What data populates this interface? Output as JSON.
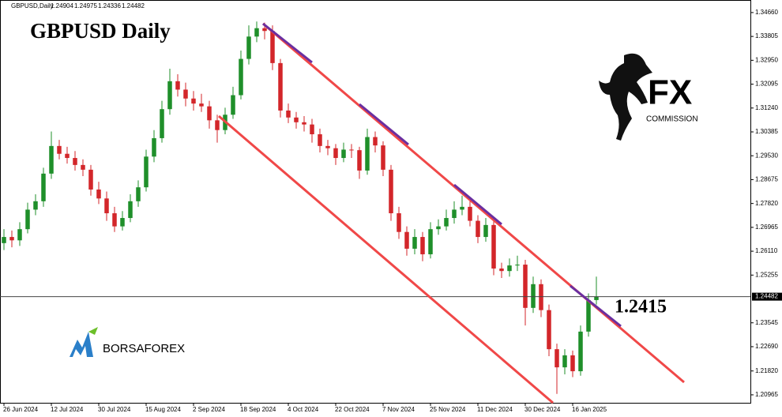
{
  "header": {
    "symbol": "GBPUSD,Daily",
    "quotes": [
      "1.24904",
      "1.24975",
      "1.24336",
      "1.24482"
    ]
  },
  "chart_data": {
    "type": "candlestick",
    "title": "GBPUSD   Daily",
    "annotation": "1.2415",
    "up_color": "#1f8f2a",
    "down_color": "#d3262a",
    "ylim": [
      1.2068,
      1.3511
    ],
    "yticks": [
      {
        "value": 1.3466,
        "label": "1.34660"
      },
      1.33805,
      {
        "value": 1.3295,
        "label": "1.32950"
      },
      1.32095,
      {
        "value": 1.3124,
        "label": "1.31240"
      },
      1.30385,
      {
        "value": 1.2953,
        "label": "1.29530"
      },
      1.28675,
      {
        "value": 1.2782,
        "label": "1.27820"
      },
      1.26965,
      {
        "value": 1.2611,
        "label": "1.26110"
      },
      1.25255,
      1.23545,
      {
        "value": 1.2269,
        "label": "1.22690"
      },
      {
        "value": 1.2182,
        "label": "1.21820"
      },
      1.20965
    ],
    "current_price": 1.24482,
    "xlim": [
      -0.5,
      94.5
    ],
    "xticks": [
      {
        "value": 0,
        "label": "26 Jun 2024"
      },
      {
        "value": 6,
        "label": "12 Jul 2024"
      },
      {
        "value": 12,
        "label": "30 Jul 2024"
      },
      {
        "value": 18,
        "label": "15 Aug 2024"
      },
      {
        "value": 24,
        "label": "2 Sep 2024"
      },
      {
        "value": 30,
        "label": "18 Sep 2024"
      },
      {
        "value": 36,
        "label": "4 Oct 2024"
      },
      {
        "value": 42,
        "label": "22 Oct 2024"
      },
      {
        "value": 48,
        "label": "7 Nov 2024"
      },
      {
        "value": 54,
        "label": "25 Nov 2024"
      },
      {
        "value": 60,
        "label": "11 Dec 2024"
      },
      {
        "value": 66,
        "label": "30 Dec 2024"
      },
      {
        "value": 72,
        "label": "16 Jan 2025"
      }
    ],
    "candles": [
      [
        1.264,
        1.269,
        1.2615,
        1.2662
      ],
      [
        1.2662,
        1.2685,
        1.2625,
        1.265
      ],
      [
        1.265,
        1.2715,
        1.263,
        1.269
      ],
      [
        1.269,
        1.2785,
        1.2675,
        1.276
      ],
      [
        1.276,
        1.2815,
        1.274,
        1.279
      ],
      [
        1.279,
        1.291,
        1.277,
        1.2889
      ],
      [
        1.2889,
        1.304,
        1.287,
        1.2988
      ],
      [
        1.2988,
        1.301,
        1.294,
        1.296
      ],
      [
        1.296,
        1.2985,
        1.2925,
        1.2945
      ],
      [
        1.2945,
        1.297,
        1.29,
        1.292
      ],
      [
        1.292,
        1.294,
        1.288,
        1.2903
      ],
      [
        1.2903,
        1.292,
        1.281,
        1.2832
      ],
      [
        1.2832,
        1.286,
        1.278,
        1.28
      ],
      [
        1.28,
        1.2825,
        1.272,
        1.2747
      ],
      [
        1.2747,
        1.277,
        1.268,
        1.27
      ],
      [
        1.27,
        1.2755,
        1.2685,
        1.273
      ],
      [
        1.273,
        1.2815,
        1.2715,
        1.279
      ],
      [
        1.279,
        1.2865,
        1.277,
        1.284
      ],
      [
        1.284,
        1.2975,
        1.2825,
        1.295
      ],
      [
        1.295,
        1.3045,
        1.293,
        1.3016
      ],
      [
        1.3016,
        1.315,
        1.3,
        1.312
      ],
      [
        1.312,
        1.3265,
        1.31,
        1.322
      ],
      [
        1.322,
        1.3245,
        1.3165,
        1.319
      ],
      [
        1.319,
        1.3215,
        1.313,
        1.3158
      ],
      [
        1.3158,
        1.3185,
        1.3115,
        1.314
      ],
      [
        1.314,
        1.3175,
        1.311,
        1.313
      ],
      [
        1.313,
        1.315,
        1.305,
        1.308
      ],
      [
        1.308,
        1.31,
        1.3,
        1.3045
      ],
      [
        1.3045,
        1.3125,
        1.303,
        1.31
      ],
      [
        1.31,
        1.32,
        1.3085,
        1.317
      ],
      [
        1.317,
        1.333,
        1.3155,
        1.33
      ],
      [
        1.33,
        1.342,
        1.328,
        1.338
      ],
      [
        1.338,
        1.3434,
        1.336,
        1.341
      ],
      [
        1.341,
        1.343,
        1.337,
        1.34
      ],
      [
        1.34,
        1.342,
        1.326,
        1.3285
      ],
      [
        1.3285,
        1.33,
        1.309,
        1.3115
      ],
      [
        1.3115,
        1.314,
        1.307,
        1.309
      ],
      [
        1.309,
        1.311,
        1.305,
        1.3073
      ],
      [
        1.3073,
        1.3095,
        1.304,
        1.3065
      ],
      [
        1.3065,
        1.3085,
        1.3,
        1.303
      ],
      [
        1.303,
        1.305,
        1.2965,
        1.2988
      ],
      [
        1.2988,
        1.301,
        1.2955,
        1.298
      ],
      [
        1.298,
        1.2995,
        1.292,
        1.2945
      ],
      [
        1.2945,
        1.3,
        1.293,
        1.2975
      ],
      [
        1.2975,
        1.2995,
        1.2945,
        1.2973
      ],
      [
        1.2973,
        1.2985,
        1.287,
        1.29
      ],
      [
        1.29,
        1.305,
        1.2885,
        1.302
      ],
      [
        1.302,
        1.304,
        1.2965,
        1.299
      ],
      [
        1.299,
        1.3005,
        1.288,
        1.2903
      ],
      [
        1.2903,
        1.292,
        1.272,
        1.2747
      ],
      [
        1.2747,
        1.277,
        1.2655,
        1.268
      ],
      [
        1.268,
        1.27,
        1.2595,
        1.262
      ],
      [
        1.262,
        1.269,
        1.26,
        1.2662
      ],
      [
        1.2662,
        1.268,
        1.2575,
        1.26
      ],
      [
        1.26,
        1.2715,
        1.2585,
        1.269
      ],
      [
        1.269,
        1.2725,
        1.267,
        1.27
      ],
      [
        1.27,
        1.276,
        1.2685,
        1.273
      ],
      [
        1.273,
        1.279,
        1.271,
        1.276
      ],
      [
        1.276,
        1.281,
        1.274,
        1.277
      ],
      [
        1.277,
        1.279,
        1.27,
        1.272
      ],
      [
        1.272,
        1.274,
        1.264,
        1.2662
      ],
      [
        1.2662,
        1.273,
        1.2645,
        1.2705
      ],
      [
        1.2705,
        1.2725,
        1.2525,
        1.2549
      ],
      [
        1.2549,
        1.257,
        1.2515,
        1.254
      ],
      [
        1.254,
        1.2585,
        1.252,
        1.256
      ],
      [
        1.256,
        1.2595,
        1.254,
        1.2563
      ],
      [
        1.2563,
        1.258,
        1.2345,
        1.2408
      ],
      [
        1.2408,
        1.252,
        1.239,
        1.2493
      ],
      [
        1.2493,
        1.251,
        1.2375,
        1.24
      ],
      [
        1.24,
        1.242,
        1.2235,
        1.226
      ],
      [
        1.226,
        1.228,
        1.21,
        1.2195
      ],
      [
        1.2195,
        1.226,
        1.217,
        1.2238
      ],
      [
        1.2238,
        1.2255,
        1.216,
        1.2181
      ],
      [
        1.2181,
        1.2345,
        1.2165,
        1.2323
      ],
      [
        1.2323,
        1.246,
        1.2305,
        1.2436
      ],
      [
        1.2436,
        1.252,
        1.242,
        1.2448
      ]
    ]
  },
  "logos": {
    "fx": "FX",
    "fx_sub": "COMMISSION",
    "borsa": "BORSAFOREX"
  }
}
